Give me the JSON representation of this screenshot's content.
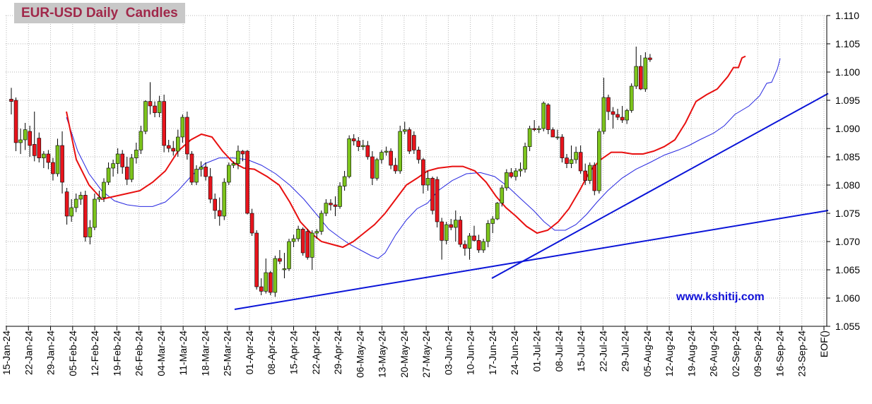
{
  "chart_data": {
    "type": "candlestick",
    "title": "EUR-USD Daily  Candles",
    "watermark": "www.kshitij.com",
    "ylim": [
      1.055,
      1.11
    ],
    "y_ticks": [
      "1.055",
      "1.060",
      "1.065",
      "1.070",
      "1.075",
      "1.080",
      "1.085",
      "1.090",
      "1.095",
      "1.100",
      "1.105",
      "1.110"
    ],
    "x_ticks": [
      "15-Jan-24",
      "22-Jan-24",
      "29-Jan-24",
      "05-Feb-24",
      "12-Feb-24",
      "19-Feb-24",
      "26-Feb-24",
      "04-Mar-24",
      "11-Mar-24",
      "18-Mar-24",
      "25-Mar-24",
      "01-Apr-24",
      "08-Apr-24",
      "15-Apr-24",
      "22-Apr-24",
      "29-Apr-24",
      "06-May-24",
      "13-May-24",
      "20-May-24",
      "27-May-24",
      "03-Jun-24",
      "10-Jun-24",
      "17-Jun-24",
      "24-Jun-24",
      "01-Jul-24",
      "08-Jul-24",
      "15-Jul-24",
      "22-Jul-24",
      "29-Jul-24",
      "05-Aug-24",
      "12-Aug-24",
      "19-Aug-24",
      "26-Aug-24",
      "02-Sep-24",
      "09-Sep-24",
      "16-Sep-24",
      "23-Sep-24",
      "EOF()"
    ],
    "colors": {
      "up": "#7cc41c",
      "down": "#e8141c",
      "wick": "#000000",
      "ma_fast": "#e81010",
      "ma_slow": "#2828e0",
      "trend": "#0a14d8",
      "grid": "#b4b4b4",
      "title_bg": "#c8c8c8",
      "title_text": "#a0284a"
    },
    "candles": [
      [
        1.0952,
        1.0972,
        1.0925,
        1.0948
      ],
      [
        1.095,
        1.0955,
        1.086,
        1.0875
      ],
      [
        1.0875,
        1.09,
        1.0855,
        1.088
      ],
      [
        1.088,
        1.091,
        1.0862,
        1.0898
      ],
      [
        1.0895,
        1.0905,
        1.085,
        1.087
      ],
      [
        1.0872,
        1.093,
        1.0842,
        1.0852
      ],
      [
        1.0883,
        1.0893,
        1.084,
        1.0848
      ],
      [
        1.0848,
        1.086,
        1.083,
        1.0855
      ],
      [
        1.0855,
        1.0862,
        1.0828,
        1.084
      ],
      [
        1.084,
        1.0848,
        1.0808,
        1.082
      ],
      [
        1.082,
        1.0882,
        1.0815,
        1.087
      ],
      [
        1.087,
        1.0895,
        1.0785,
        1.0805
      ],
      [
        1.0788,
        1.0795,
        1.073,
        1.0745
      ],
      [
        1.0745,
        1.0775,
        1.0735,
        1.076
      ],
      [
        1.076,
        1.0785,
        1.0752,
        1.0775
      ],
      [
        1.0775,
        1.0788,
        1.0765,
        1.0782
      ],
      [
        1.0782,
        1.079,
        1.07,
        1.0708
      ],
      [
        1.0708,
        1.0738,
        1.0695,
        1.0725
      ],
      [
        1.0725,
        1.0785,
        1.072,
        1.0775
      ],
      [
        1.0775,
        1.079,
        1.077,
        1.0778
      ],
      [
        1.0778,
        1.0812,
        1.077,
        1.0805
      ],
      [
        1.0805,
        1.084,
        1.08,
        1.083
      ],
      [
        1.083,
        1.0845,
        1.0815,
        1.0838
      ],
      [
        1.0838,
        1.0865,
        1.082,
        1.0855
      ],
      [
        1.0855,
        1.0862,
        1.082,
        1.0832
      ],
      [
        1.0832,
        1.085,
        1.08,
        1.081
      ],
      [
        1.081,
        1.0855,
        1.0805,
        1.0848
      ],
      [
        1.0848,
        1.0875,
        1.0838,
        1.0862
      ],
      [
        1.0862,
        1.0905,
        1.0855,
        1.0895
      ],
      [
        1.0895,
        1.095,
        1.089,
        1.0948
      ],
      [
        1.0948,
        1.0982,
        1.0925,
        1.094
      ],
      [
        1.094,
        1.0948,
        1.092,
        1.0928
      ],
      [
        1.0928,
        1.0958,
        1.092,
        1.0948
      ],
      [
        1.0948,
        1.096,
        1.0858,
        1.087
      ],
      [
        1.087,
        1.088,
        1.0858,
        1.0865
      ],
      [
        1.0865,
        1.0878,
        1.0852,
        1.086
      ],
      [
        1.086,
        1.0898,
        1.085,
        1.0885
      ],
      [
        1.0885,
        1.0925,
        1.0875,
        1.092
      ],
      [
        1.092,
        1.093,
        1.0845,
        1.0855
      ],
      [
        1.0855,
        1.086,
        1.08,
        1.0805
      ],
      [
        1.0805,
        1.0835,
        1.08,
        1.0828
      ],
      [
        1.0828,
        1.0842,
        1.0815,
        1.0832
      ],
      [
        1.0832,
        1.084,
        1.0808,
        1.0815
      ],
      [
        1.0815,
        1.083,
        1.0768,
        1.0775
      ],
      [
        1.0775,
        1.0785,
        1.074,
        1.0755
      ],
      [
        1.0755,
        1.0778,
        1.0728,
        1.0745
      ],
      [
        1.0745,
        1.0812,
        1.0738,
        1.0805
      ],
      [
        1.0805,
        1.084,
        1.08,
        1.0835
      ],
      [
        1.0835,
        1.0842,
        1.083,
        1.0838
      ],
      [
        1.0838,
        1.087,
        1.0828,
        1.086
      ],
      [
        1.086,
        1.0862,
        1.0842,
        1.0855
      ],
      [
        1.086,
        1.0862,
        1.0748,
        1.075
      ],
      [
        1.075,
        1.0758,
        1.071,
        1.0715
      ],
      [
        1.0715,
        1.072,
        1.0615,
        1.062
      ],
      [
        1.062,
        1.0635,
        1.0605,
        1.0612
      ],
      [
        1.0612,
        1.067,
        1.0608,
        1.0645
      ],
      [
        1.0645,
        1.0648,
        1.0605,
        1.061
      ],
      [
        1.061,
        1.0675,
        1.0602,
        1.067
      ],
      [
        1.067,
        1.0685,
        1.066,
        1.0665
      ],
      [
        1.065,
        1.068,
        1.0635,
        1.0652
      ],
      [
        1.0652,
        1.0705,
        1.0648,
        1.07
      ],
      [
        1.07,
        1.0712,
        1.069,
        1.0705
      ],
      [
        1.0705,
        1.0728,
        1.07,
        1.0722
      ],
      [
        1.0722,
        1.0725,
        1.0675,
        1.068
      ],
      [
        1.0718,
        1.0722,
        1.0668,
        1.0672
      ],
      [
        1.0672,
        1.072,
        1.065,
        1.0715
      ],
      [
        1.0715,
        1.0722,
        1.0705,
        1.0718
      ],
      [
        1.0718,
        1.0755,
        1.0712,
        1.075
      ],
      [
        1.075,
        1.0775,
        1.0745,
        1.0768
      ],
      [
        1.0768,
        1.0775,
        1.0755,
        1.0765
      ],
      [
        1.0765,
        1.078,
        1.0745,
        1.0762
      ],
      [
        1.0762,
        1.0805,
        1.0758,
        1.0798
      ],
      [
        1.0798,
        1.0825,
        1.079,
        1.0815
      ],
      [
        1.0815,
        1.0888,
        1.0812,
        1.0882
      ],
      [
        1.0882,
        1.089,
        1.087,
        1.0878
      ],
      [
        1.0878,
        1.0885,
        1.086,
        1.0868
      ],
      [
        1.0868,
        1.088,
        1.0862,
        1.087
      ],
      [
        1.087,
        1.0878,
        1.0845,
        1.085
      ],
      [
        1.085,
        1.086,
        1.08,
        1.0812
      ],
      [
        1.0812,
        1.0848,
        1.0808,
        1.0845
      ],
      [
        1.0845,
        1.0862,
        1.0838,
        1.0858
      ],
      [
        1.0858,
        1.0868,
        1.0852,
        1.086
      ],
      [
        1.086,
        1.0865,
        1.0828,
        1.0835
      ],
      [
        1.0835,
        1.0848,
        1.082,
        1.0825
      ],
      [
        1.0825,
        1.0905,
        1.082,
        1.0895
      ],
      [
        1.0895,
        1.0912,
        1.089,
        1.0898
      ],
      [
        1.0898,
        1.0902,
        1.0855,
        1.086
      ],
      [
        1.0888,
        1.0895,
        1.0855,
        1.0862
      ],
      [
        1.0862,
        1.0868,
        1.0838,
        1.0845
      ],
      [
        1.0845,
        1.0848,
        1.0785,
        1.08
      ],
      [
        1.08,
        1.0825,
        1.079,
        1.0812
      ],
      [
        1.0812,
        1.0815,
        1.0748,
        1.0755
      ],
      [
        1.081,
        1.0815,
        1.0725,
        1.0735
      ],
      [
        1.0735,
        1.0742,
        1.0668,
        1.0702
      ],
      [
        1.0702,
        1.0735,
        1.0695,
        1.073
      ],
      [
        1.073,
        1.074,
        1.072,
        1.0725
      ],
      [
        1.0725,
        1.0755,
        1.07,
        1.0738
      ],
      [
        1.0738,
        1.0745,
        1.069,
        1.0695
      ],
      [
        1.0695,
        1.0702,
        1.0675,
        1.0688
      ],
      [
        1.0688,
        1.0715,
        1.0668,
        1.071
      ],
      [
        1.071,
        1.0728,
        1.07,
        1.0702
      ],
      [
        1.0702,
        1.0712,
        1.068,
        1.0685
      ],
      [
        1.0685,
        1.0705,
        1.068,
        1.07
      ],
      [
        1.07,
        1.0738,
        1.069,
        1.0732
      ],
      [
        1.0732,
        1.0745,
        1.0715,
        1.074
      ],
      [
        1.074,
        1.077,
        1.0738,
        1.0768
      ],
      [
        1.0768,
        1.08,
        1.0762,
        1.0795
      ],
      [
        1.0795,
        1.0828,
        1.079,
        1.0822
      ],
      [
        1.0822,
        1.083,
        1.0812,
        1.0815
      ],
      [
        1.0815,
        1.083,
        1.0808,
        1.0825
      ],
      [
        1.0825,
        1.084,
        1.0815,
        1.0828
      ],
      [
        1.0828,
        1.0875,
        1.0822,
        1.0868
      ],
      [
        1.0868,
        1.0905,
        1.086,
        1.09
      ],
      [
        1.09,
        1.0915,
        1.0895,
        1.0898
      ],
      [
        1.0898,
        1.0905,
        1.0892,
        1.09
      ],
      [
        1.09,
        1.0948,
        1.0895,
        1.0945
      ],
      [
        1.0942,
        1.0945,
        1.089,
        1.0898
      ],
      [
        1.0898,
        1.0902,
        1.0885,
        1.0885
      ],
      [
        1.0885,
        1.0898,
        1.088,
        1.0885
      ],
      [
        1.0885,
        1.089,
        1.084,
        1.0848
      ],
      [
        1.0848,
        1.0855,
        1.083,
        1.0838
      ],
      [
        1.0838,
        1.087,
        1.083,
        1.0845
      ],
      [
        1.0845,
        1.0868,
        1.0838,
        1.0858
      ],
      [
        1.0858,
        1.087,
        1.082,
        1.0825
      ],
      [
        1.0825,
        1.0838,
        1.08,
        1.0808
      ],
      [
        1.0808,
        1.084,
        1.0802,
        1.0835
      ],
      [
        1.0835,
        1.084,
        1.0782,
        1.079
      ],
      [
        1.079,
        1.09,
        1.0785,
        1.0895
      ],
      [
        1.0895,
        1.099,
        1.089,
        1.0955
      ],
      [
        1.0955,
        1.096,
        1.0915,
        1.093
      ],
      [
        1.093,
        1.0938,
        1.09,
        1.0925
      ],
      [
        1.0925,
        1.0935,
        1.0915,
        1.092
      ],
      [
        1.092,
        1.094,
        1.091,
        1.0915
      ],
      [
        1.0915,
        1.0935,
        1.0908,
        1.0932
      ],
      [
        1.0932,
        1.098,
        1.0928,
        1.0975
      ],
      [
        1.0975,
        1.1045,
        1.097,
        1.101
      ],
      [
        1.101,
        1.103,
        1.0968,
        1.097
      ],
      [
        1.097,
        1.1035,
        1.0965,
        1.1025
      ],
      [
        1.1025,
        1.1032,
        1.1018,
        1.1022
      ]
    ],
    "ma_fast": [
      [
        94,
        1.093
      ],
      [
        108,
        1.0845
      ],
      [
        126,
        1.08
      ],
      [
        144,
        1.0775
      ],
      [
        162,
        1.078
      ],
      [
        180,
        1.0785
      ],
      [
        198,
        1.079
      ],
      [
        216,
        1.0805
      ],
      [
        234,
        1.0825
      ],
      [
        252,
        1.086
      ],
      [
        270,
        1.088
      ],
      [
        285,
        1.089
      ],
      [
        300,
        1.0885
      ],
      [
        315,
        1.086
      ],
      [
        330,
        1.084
      ],
      [
        345,
        1.083
      ],
      [
        360,
        1.0828
      ],
      [
        378,
        1.0815
      ],
      [
        395,
        1.08
      ],
      [
        410,
        1.077
      ],
      [
        425,
        1.0735
      ],
      [
        440,
        1.0715
      ],
      [
        455,
        1.07
      ],
      [
        470,
        1.0695
      ],
      [
        485,
        1.069
      ],
      [
        500,
        1.07
      ],
      [
        515,
        1.0715
      ],
      [
        530,
        1.073
      ],
      [
        545,
        1.075
      ],
      [
        560,
        1.0775
      ],
      [
        575,
        1.08
      ],
      [
        590,
        1.0812
      ],
      [
        605,
        1.0825
      ],
      [
        620,
        1.083
      ],
      [
        640,
        1.0833
      ],
      [
        655,
        1.0833
      ],
      [
        672,
        1.0825
      ],
      [
        688,
        1.0805
      ],
      [
        702,
        1.078
      ],
      [
        716,
        1.076
      ],
      [
        730,
        1.0745
      ],
      [
        745,
        1.0727
      ],
      [
        760,
        1.0715
      ],
      [
        775,
        1.072
      ],
      [
        790,
        1.0735
      ],
      [
        805,
        1.0758
      ],
      [
        820,
        1.079
      ],
      [
        835,
        1.0825
      ],
      [
        850,
        1.0845
      ],
      [
        865,
        1.0858
      ],
      [
        880,
        1.0858
      ],
      [
        895,
        1.0855
      ],
      [
        910,
        1.0855
      ],
      [
        925,
        1.086
      ],
      [
        940,
        1.0868
      ],
      [
        955,
        1.088
      ],
      [
        970,
        1.091
      ],
      [
        985,
        1.0948
      ],
      [
        1000,
        1.096
      ],
      [
        1015,
        1.097
      ],
      [
        1030,
        1.0992
      ],
      [
        1038,
        1.1008
      ],
      [
        1045,
        1.1008
      ],
      [
        1050,
        1.1025
      ],
      [
        1055,
        1.1028
      ]
    ],
    "ma_slow": [
      [
        94,
        1.092
      ],
      [
        110,
        1.086
      ],
      [
        126,
        1.082
      ],
      [
        144,
        1.079
      ],
      [
        162,
        1.0772
      ],
      [
        180,
        1.0765
      ],
      [
        198,
        1.0762
      ],
      [
        216,
        1.0762
      ],
      [
        234,
        1.077
      ],
      [
        252,
        1.079
      ],
      [
        270,
        1.0815
      ],
      [
        290,
        1.0838
      ],
      [
        310,
        1.0848
      ],
      [
        330,
        1.0848
      ],
      [
        350,
        1.0845
      ],
      [
        370,
        1.0835
      ],
      [
        390,
        1.082
      ],
      [
        410,
        1.08
      ],
      [
        430,
        1.0775
      ],
      [
        450,
        1.0745
      ],
      [
        465,
        1.0722
      ],
      [
        480,
        1.0708
      ],
      [
        495,
        1.0695
      ],
      [
        510,
        1.0685
      ],
      [
        525,
        1.0675
      ],
      [
        535,
        1.067
      ],
      [
        545,
        1.068
      ],
      [
        560,
        1.0712
      ],
      [
        575,
        1.0738
      ],
      [
        590,
        1.0758
      ],
      [
        605,
        1.0768
      ],
      [
        620,
        1.079
      ],
      [
        640,
        1.0808
      ],
      [
        660,
        1.082
      ],
      [
        680,
        1.0822
      ],
      [
        700,
        1.0815
      ],
      [
        718,
        1.0798
      ],
      [
        735,
        1.0778
      ],
      [
        755,
        1.0755
      ],
      [
        770,
        1.0735
      ],
      [
        785,
        1.072
      ],
      [
        800,
        1.072
      ],
      [
        815,
        1.073
      ],
      [
        830,
        1.0748
      ],
      [
        845,
        1.077
      ],
      [
        860,
        1.079
      ],
      [
        880,
        1.0812
      ],
      [
        900,
        1.0828
      ],
      [
        920,
        1.084
      ],
      [
        940,
        1.0853
      ],
      [
        960,
        1.0862
      ],
      [
        975,
        1.087
      ],
      [
        990,
        1.088
      ],
      [
        1010,
        1.0892
      ],
      [
        1025,
        1.0905
      ],
      [
        1040,
        1.0925
      ],
      [
        1060,
        1.094
      ],
      [
        1075,
        1.0958
      ],
      [
        1085,
        1.098
      ],
      [
        1092,
        1.0982
      ],
      [
        1100,
        1.1005
      ],
      [
        1104,
        1.1024
      ]
    ],
    "trend_lines": [
      {
        "from": [
          332,
          1.058
        ],
        "to": [
          1172,
          1.0755
        ]
      },
      {
        "from": [
          696,
          1.0635
        ],
        "to": [
          1172,
          1.0962
        ]
      }
    ]
  }
}
